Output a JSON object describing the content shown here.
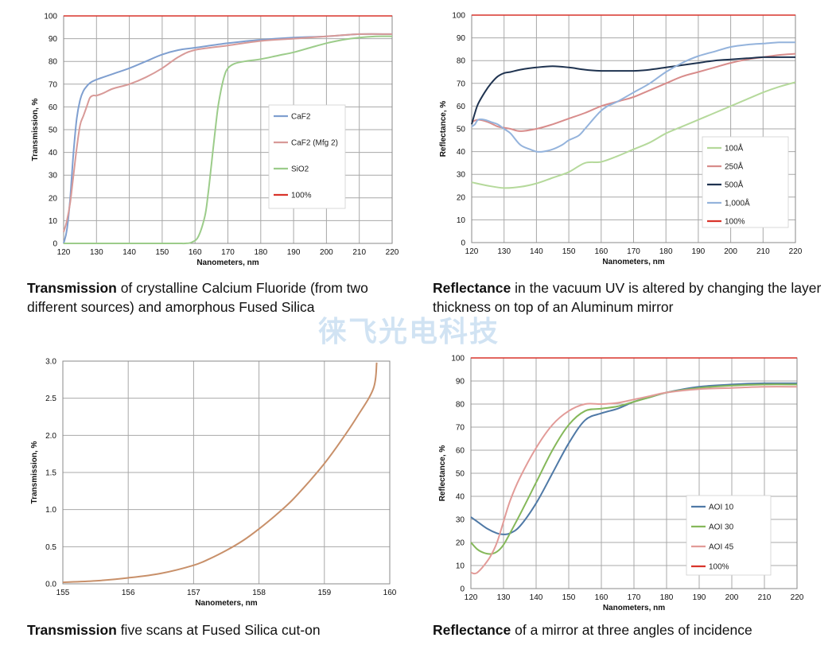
{
  "watermark": "徕飞光电科技",
  "chart_data": [
    {
      "id": "c1",
      "type": "line",
      "xlabel": "Nanometers, nm",
      "ylabel": "Transmission, %",
      "xlim": [
        120,
        220
      ],
      "ylim": [
        0,
        100
      ],
      "xticks": [
        120,
        130,
        140,
        150,
        160,
        170,
        180,
        190,
        200,
        210,
        220
      ],
      "yticks": [
        0,
        10,
        20,
        30,
        40,
        50,
        60,
        70,
        80,
        90,
        100
      ],
      "grid": true,
      "legend": "right",
      "series": [
        {
          "name": "CaF2",
          "color": "#7f9fd0",
          "x": [
            120,
            121,
            122,
            123,
            124,
            125,
            126,
            127,
            128,
            130,
            135,
            140,
            145,
            150,
            155,
            160,
            170,
            180,
            190,
            200,
            210,
            220
          ],
          "y": [
            0,
            6,
            20,
            40,
            55,
            63,
            67,
            69,
            70.5,
            72,
            74.5,
            77,
            80,
            83,
            85,
            86,
            88,
            89.5,
            90.5,
            91,
            92,
            92
          ]
        },
        {
          "name": "CaF2 (Mfg 2)",
          "color": "#d89a98",
          "x": [
            120,
            121,
            122,
            123,
            124,
            125,
            126,
            127,
            128,
            129,
            130,
            132,
            135,
            140,
            145,
            150,
            155,
            160,
            170,
            180,
            190,
            200,
            210,
            220
          ],
          "y": [
            5,
            10,
            18,
            30,
            42,
            52,
            56,
            60,
            64,
            65,
            65,
            66,
            68,
            70,
            73,
            77,
            82,
            85,
            87,
            89,
            90,
            91,
            92,
            92
          ]
        },
        {
          "name": "SiO2",
          "color": "#9ccc8a",
          "x": [
            120,
            150,
            155,
            157,
            159,
            161,
            163,
            164,
            165,
            166,
            167,
            168,
            169,
            170,
            172,
            175,
            180,
            185,
            190,
            195,
            200,
            205,
            210,
            215,
            220
          ],
          "y": [
            0,
            0,
            0,
            0,
            0.5,
            3,
            12,
            22,
            35,
            48,
            60,
            68,
            74,
            77,
            79,
            80,
            81,
            82.5,
            84,
            86,
            88,
            89.5,
            90.5,
            91,
            91
          ]
        },
        {
          "name": "100%",
          "color": "#d9342b",
          "x": [
            120,
            220
          ],
          "y": [
            100,
            100
          ]
        }
      ]
    },
    {
      "id": "c2",
      "type": "line",
      "xlabel": "Nanometers, nm",
      "ylabel": "Reflectance, %",
      "xlim": [
        120,
        220
      ],
      "ylim": [
        0,
        100
      ],
      "xticks": [
        120,
        130,
        140,
        150,
        160,
        170,
        180,
        190,
        200,
        210,
        220
      ],
      "yticks": [
        0,
        10,
        20,
        30,
        40,
        50,
        60,
        70,
        80,
        90,
        100
      ],
      "grid": true,
      "legend": "right",
      "series": [
        {
          "name": "100Å",
          "color": "#b5d99b",
          "x": [
            120,
            125,
            130,
            135,
            140,
            145,
            150,
            155,
            160,
            165,
            170,
            175,
            180,
            185,
            190,
            195,
            200,
            205,
            210,
            215,
            220
          ],
          "y": [
            26.5,
            25,
            24,
            24.5,
            26,
            28.5,
            31,
            35,
            35.5,
            38,
            41,
            44,
            48,
            51,
            54,
            57,
            60,
            63,
            66,
            68.5,
            70.5
          ]
        },
        {
          "name": "250Å",
          "color": "#d88c8b",
          "x": [
            120,
            122,
            125,
            128,
            130,
            132,
            135,
            140,
            145,
            150,
            155,
            160,
            165,
            170,
            175,
            180,
            185,
            190,
            195,
            200,
            205,
            210,
            215,
            220
          ],
          "y": [
            53,
            54,
            53,
            51,
            50.5,
            50,
            49,
            50,
            52,
            54.5,
            57,
            60,
            62,
            64,
            67,
            70,
            73,
            75,
            77,
            79,
            80.5,
            81.5,
            82.5,
            83
          ]
        },
        {
          "name": "500Å",
          "color": "#1f3350",
          "x": [
            120,
            121,
            122,
            124,
            126,
            128,
            130,
            132,
            135,
            140,
            145,
            150,
            155,
            160,
            165,
            170,
            175,
            180,
            185,
            190,
            195,
            200,
            205,
            210,
            215,
            220
          ],
          "y": [
            52,
            57,
            61,
            66,
            70,
            73,
            74.5,
            75,
            76,
            77,
            77.5,
            77,
            76,
            75.5,
            75.5,
            75.5,
            76,
            77,
            78,
            79,
            80,
            80.5,
            81,
            81.5,
            81.5,
            81.5
          ]
        },
        {
          "name": "1,000Å",
          "color": "#94b3dc",
          "x": [
            120,
            121,
            122,
            124,
            126,
            128,
            130,
            132,
            135,
            138,
            140,
            142,
            145,
            148,
            150,
            153,
            155,
            158,
            160,
            162,
            165,
            170,
            175,
            180,
            185,
            190,
            195,
            200,
            205,
            210,
            215,
            220
          ],
          "y": [
            51,
            52,
            54,
            54,
            53,
            52,
            50,
            48,
            43,
            41,
            40,
            40,
            41,
            43,
            45,
            47,
            50,
            55,
            58,
            60,
            62,
            66,
            70,
            75,
            79,
            82,
            84,
            86,
            87,
            87.5,
            88,
            88
          ]
        },
        {
          "name": "100%",
          "color": "#d9342b",
          "x": [
            120,
            220
          ],
          "y": [
            100,
            100
          ]
        }
      ]
    },
    {
      "id": "c3",
      "type": "line",
      "xlabel": "Nanometers, nm",
      "ylabel": "Transmission, %",
      "xlim": [
        155,
        160
      ],
      "ylim": [
        0,
        3
      ],
      "xticks": [
        155,
        156,
        157,
        158,
        159,
        160
      ],
      "yticks": [
        0.0,
        0.5,
        1.0,
        1.5,
        2.0,
        2.5,
        3.0
      ],
      "ytick_labels": [
        "0.0",
        "0.5",
        "1.0",
        "1.5",
        "2.0",
        "2.5",
        "3.0"
      ],
      "grid": true,
      "series": [
        {
          "name": "",
          "color": "#c8906a",
          "x": [
            155,
            155.5,
            156,
            156.5,
            157,
            157.25,
            157.5,
            157.75,
            158,
            158.25,
            158.5,
            158.75,
            159,
            159.25,
            159.5,
            159.75,
            159.8
          ],
          "y": [
            0.02,
            0.04,
            0.08,
            0.14,
            0.25,
            0.34,
            0.45,
            0.58,
            0.74,
            0.92,
            1.12,
            1.36,
            1.62,
            1.92,
            2.25,
            2.63,
            2.98
          ]
        }
      ]
    },
    {
      "id": "c4",
      "type": "line",
      "xlabel": "Nanometers, nm",
      "ylabel": "Reflectance, %",
      "xlim": [
        120,
        220
      ],
      "ylim": [
        0,
        100
      ],
      "xticks": [
        120,
        130,
        140,
        150,
        160,
        170,
        180,
        190,
        200,
        210,
        220
      ],
      "yticks": [
        0,
        10,
        20,
        30,
        40,
        50,
        60,
        70,
        80,
        90,
        100
      ],
      "grid": true,
      "legend": "right",
      "series": [
        {
          "name": "AOI 10",
          "color": "#4f79a6",
          "x": [
            120,
            122,
            125,
            128,
            130,
            132,
            135,
            140,
            145,
            150,
            155,
            160,
            165,
            170,
            175,
            180,
            190,
            200,
            210,
            220
          ],
          "y": [
            31,
            29,
            26,
            24,
            23.5,
            24,
            27,
            37,
            50,
            63,
            73,
            76,
            78,
            81,
            83,
            85,
            87.5,
            88.5,
            89,
            89
          ]
        },
        {
          "name": "AOI 30",
          "color": "#85b85a",
          "x": [
            120,
            122,
            124,
            126,
            128,
            130,
            132,
            135,
            140,
            145,
            150,
            155,
            160,
            165,
            170,
            175,
            180,
            190,
            200,
            210,
            220
          ],
          "y": [
            20,
            17,
            15.5,
            15,
            16,
            19,
            24,
            32,
            46,
            60,
            71,
            77,
            78,
            79,
            81,
            83,
            85,
            87,
            88,
            88.5,
            88.5
          ]
        },
        {
          "name": "AOI 45",
          "color": "#e29b98",
          "x": [
            120,
            121,
            122,
            124,
            126,
            128,
            130,
            132,
            135,
            140,
            145,
            150,
            155,
            160,
            165,
            170,
            175,
            180,
            190,
            200,
            210,
            220
          ],
          "y": [
            7,
            6.5,
            7,
            10,
            14,
            20,
            29,
            38,
            48,
            61,
            71,
            77,
            80,
            80,
            80.5,
            82,
            83.5,
            85,
            86.5,
            87,
            87.5,
            87.5
          ]
        },
        {
          "name": "100%",
          "color": "#d9342b",
          "x": [
            120,
            220
          ],
          "y": [
            100,
            100
          ]
        }
      ]
    }
  ],
  "captions": [
    {
      "bold": "Transmission",
      "text": " of crystalline Calcium Fluoride (from two different sources) and amorphous Fused Silica"
    },
    {
      "bold": "Reflectance",
      "text": " in the vacuum UV is altered by changing the layer thickness on top of an Aluminum mirror"
    },
    {
      "bold": "Transmission",
      "text": " five scans at Fused Silica cut-on"
    },
    {
      "bold": "Reflectance",
      "text": " of a mirror at three angles of incidence"
    }
  ]
}
